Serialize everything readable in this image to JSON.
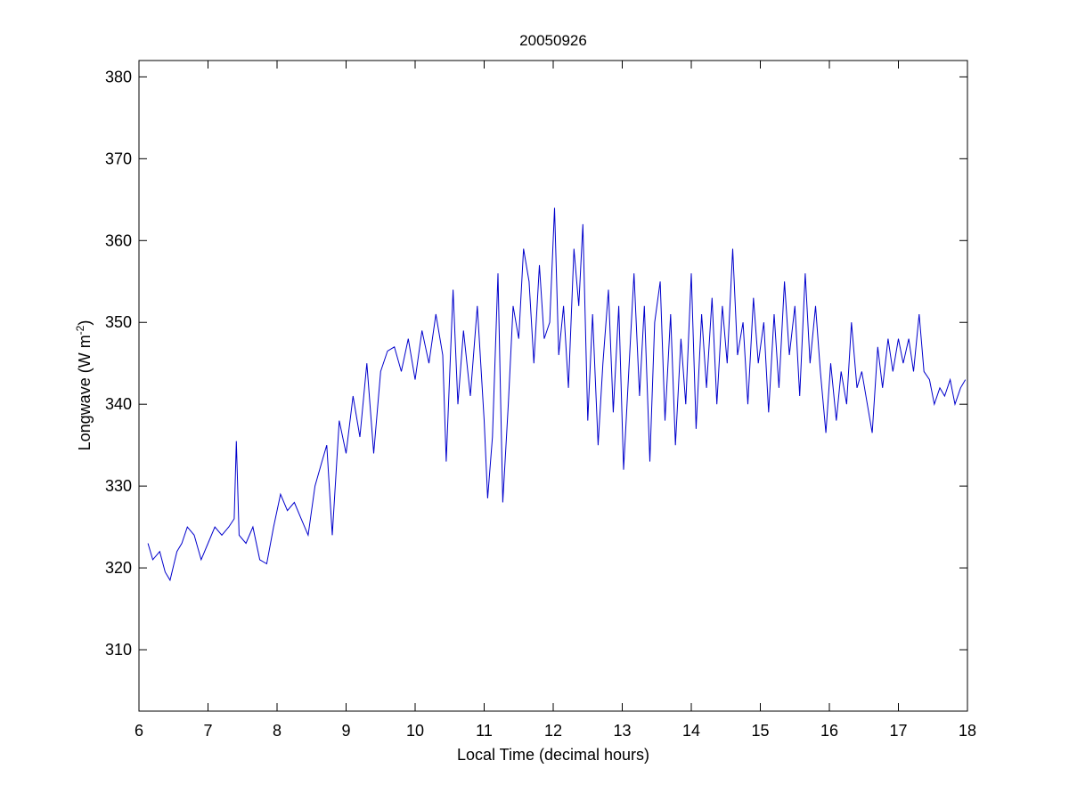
{
  "chart_data": {
    "type": "line",
    "title": "20050926",
    "xlabel": "Local Time (decimal hours)",
    "ylabel": "Longwave (W m",
    "ylabel_superscript": "-2",
    "ylabel_suffix": ")",
    "xlim": [
      6,
      18
    ],
    "ylim": [
      302.5,
      382
    ],
    "xticks": [
      6,
      7,
      8,
      9,
      10,
      11,
      12,
      13,
      14,
      15,
      16,
      17,
      18
    ],
    "yticks": [
      310,
      320,
      330,
      340,
      350,
      360,
      370,
      380
    ],
    "grid": false,
    "line_color": "#0000cc",
    "series": [
      {
        "x": [
          6.13,
          6.2,
          6.3,
          6.38,
          6.45,
          6.55,
          6.62,
          6.7,
          6.8,
          6.9,
          7.0,
          7.1,
          7.2,
          7.3,
          7.38,
          7.41,
          7.45,
          7.55,
          7.65,
          7.75,
          7.85,
          7.95,
          8.05,
          8.15,
          8.25,
          8.35,
          8.45,
          8.55,
          8.65,
          8.72,
          8.8,
          8.9,
          9.0,
          9.1,
          9.2,
          9.3,
          9.4,
          9.5,
          9.6,
          9.7,
          9.8,
          9.9,
          10.0,
          10.1,
          10.2,
          10.3,
          10.4,
          10.45,
          10.55,
          10.62,
          10.7,
          10.8,
          10.9,
          11.0,
          11.05,
          11.12,
          11.2,
          11.27,
          11.35,
          11.42,
          11.5,
          11.57,
          11.65,
          11.72,
          11.8,
          11.87,
          11.95,
          12.02,
          12.08,
          12.15,
          12.22,
          12.3,
          12.37,
          12.43,
          12.5,
          12.57,
          12.65,
          12.72,
          12.8,
          12.87,
          12.95,
          13.02,
          13.1,
          13.17,
          13.25,
          13.32,
          13.4,
          13.47,
          13.55,
          13.62,
          13.7,
          13.77,
          13.85,
          13.92,
          14.0,
          14.07,
          14.15,
          14.22,
          14.3,
          14.37,
          14.45,
          14.52,
          14.6,
          14.67,
          14.75,
          14.82,
          14.9,
          14.97,
          15.05,
          15.12,
          15.2,
          15.27,
          15.35,
          15.42,
          15.5,
          15.57,
          15.65,
          15.72,
          15.8,
          15.87,
          15.95,
          16.02,
          16.1,
          16.17,
          16.25,
          16.32,
          16.4,
          16.47,
          16.55,
          16.62,
          16.7,
          16.77,
          16.85,
          16.92,
          17.0,
          17.07,
          17.15,
          17.22,
          17.3,
          17.37,
          17.45,
          17.52,
          17.6,
          17.67,
          17.75,
          17.82,
          17.9,
          17.97
        ],
        "y": [
          323,
          321,
          322,
          319.5,
          318.5,
          322,
          323,
          325,
          324,
          321,
          323,
          325,
          324,
          325,
          326,
          335.5,
          324,
          323,
          325,
          321,
          320.5,
          325,
          329,
          327,
          328,
          326,
          324,
          330,
          333,
          335,
          324,
          338,
          334,
          341,
          336,
          345,
          334,
          344,
          346.5,
          347,
          344,
          348,
          343,
          349,
          345,
          351,
          346,
          333,
          354,
          340,
          349,
          341,
          352,
          338,
          328.5,
          336,
          356,
          328,
          340,
          352,
          348,
          359,
          355,
          345,
          357,
          348,
          350,
          364,
          346,
          352,
          342,
          359,
          352,
          362,
          338,
          351,
          335,
          345,
          354,
          339,
          352,
          332,
          345,
          356,
          341,
          352,
          333,
          350,
          355,
          338,
          351,
          335,
          348,
          340,
          356,
          337,
          351,
          342,
          353,
          340,
          352,
          345,
          359,
          346,
          350,
          340,
          353,
          345,
          350,
          339,
          351,
          342,
          355,
          346,
          352,
          341,
          356,
          345,
          352,
          344,
          336.5,
          345,
          338,
          344,
          340,
          350,
          342,
          344,
          340,
          336.5,
          347,
          342,
          348,
          344,
          348,
          345,
          348,
          344,
          351,
          344,
          343,
          340,
          342,
          341,
          343,
          340,
          342,
          343
        ]
      }
    ]
  }
}
